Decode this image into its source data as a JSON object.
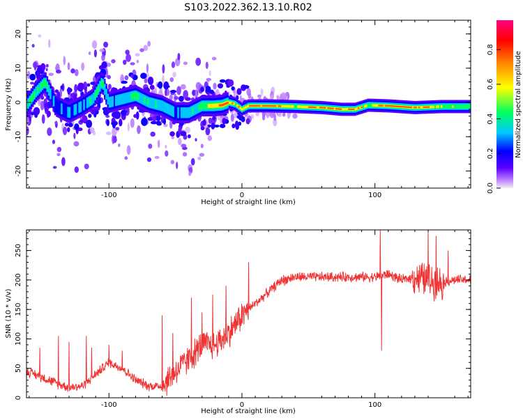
{
  "title": "S103.2022.362.13.10.R02",
  "chart_data": [
    {
      "type": "heatmap",
      "panel": "spectrogram",
      "xlabel": "Height of straight line (km)",
      "ylabel": "Frequency (Hz)",
      "xlim": [
        -162,
        172
      ],
      "ylim": [
        -25,
        24
      ],
      "xticks": [
        -100,
        0,
        100
      ],
      "xtick_labels": [
        "-100",
        "0",
        "100"
      ],
      "yticks": [
        -20,
        -10,
        0,
        10,
        20
      ],
      "ytick_labels": [
        "-20",
        "-10",
        "0",
        "10",
        "20"
      ],
      "colorbar": {
        "label": "Normalized spectral amplitude",
        "range": [
          0.0,
          0.97
        ],
        "ticks": [
          0.0,
          0.2,
          0.4,
          0.6,
          0.8
        ],
        "tick_labels": [
          "0.0",
          "0.2",
          "0.4",
          "0.6",
          "0.8"
        ],
        "colormap": [
          "#f0f0f0",
          "#b060ff",
          "#5a00ff",
          "#0000ff",
          "#00c8ff",
          "#00ff60",
          "#ffff00",
          "#ff8000",
          "#ff0000",
          "#ff0080"
        ]
      },
      "ridge": {
        "x": [
          -162,
          -155,
          -148,
          -140,
          -130,
          -120,
          -112,
          -105,
          -100,
          -90,
          -80,
          -70,
          -60,
          -50,
          -40,
          -30,
          -22,
          -15,
          -10,
          -5,
          0,
          5,
          20,
          40,
          60,
          75,
          85,
          95,
          110,
          130,
          150,
          172
        ],
        "y": [
          -1,
          3,
          6,
          -1,
          -3,
          -1,
          1,
          6,
          0,
          1,
          2,
          0,
          -1,
          -3,
          -3,
          -1,
          -1,
          -0.8,
          0,
          -0.5,
          -2,
          -1,
          -1,
          -1.2,
          -1.5,
          -2,
          -2,
          -0.8,
          -1,
          -1.5,
          -1.2,
          -1.2
        ],
        "amplitude": [
          0.45,
          0.5,
          0.5,
          0.3,
          0.3,
          0.35,
          0.45,
          0.5,
          0.35,
          0.4,
          0.45,
          0.4,
          0.4,
          0.35,
          0.4,
          0.45,
          0.7,
          0.8,
          0.85,
          0.7,
          0.75,
          0.8,
          0.92,
          0.6,
          0.92,
          0.8,
          0.9,
          0.55,
          0.95,
          0.9,
          0.6,
          0.5
        ]
      }
    },
    {
      "type": "line",
      "panel": "snr",
      "xlabel": "Height of straight line (km)",
      "ylabel": "SNR (10 * v/v)",
      "xlim": [
        -162,
        172
      ],
      "ylim": [
        0,
        285
      ],
      "xticks": [
        -100,
        0,
        100
      ],
      "xtick_labels": [
        "-100",
        "0",
        "100"
      ],
      "yticks": [
        0,
        50,
        100,
        150,
        200,
        250
      ],
      "ytick_labels": [
        "0",
        "50",
        "100",
        "150",
        "200",
        "250"
      ],
      "color": "#f03232",
      "series": [
        {
          "name": "SNR",
          "x": [
            -162,
            -150,
            -140,
            -130,
            -120,
            -110,
            -100,
            -90,
            -80,
            -70,
            -60,
            -50,
            -40,
            -30,
            -20,
            -10,
            0,
            10,
            20,
            30,
            40,
            60,
            80,
            100,
            110,
            120,
            130,
            140,
            150,
            160,
            172
          ],
          "y": [
            45,
            35,
            25,
            18,
            20,
            40,
            60,
            50,
            30,
            20,
            20,
            45,
            65,
            90,
            90,
            110,
            140,
            160,
            180,
            200,
            205,
            205,
            205,
            205,
            210,
            200,
            205,
            200,
            195,
            200,
            200
          ],
          "spikes": [
            {
              "x": -152,
              "y": 85
            },
            {
              "x": -138,
              "y": 105
            },
            {
              "x": -130,
              "y": 95
            },
            {
              "x": -117,
              "y": 105
            },
            {
              "x": -113,
              "y": 85
            },
            {
              "x": -100,
              "y": 90
            },
            {
              "x": -90,
              "y": 80
            },
            {
              "x": -60,
              "y": 140
            },
            {
              "x": -52,
              "y": 110
            },
            {
              "x": -38,
              "y": 170
            },
            {
              "x": -30,
              "y": 145
            },
            {
              "x": -22,
              "y": 175
            },
            {
              "x": -12,
              "y": 190
            },
            {
              "x": 5,
              "y": 230
            },
            {
              "x": 32,
              "y": 190
            },
            {
              "x": 104,
              "y": 285
            },
            {
              "x": 105,
              "y": 80
            },
            {
              "x": 140,
              "y": 285
            },
            {
              "x": 146,
              "y": 275
            },
            {
              "x": 155,
              "y": 250
            }
          ],
          "envelope": [
            {
              "x": 130,
              "y": 50
            },
            {
              "x": 140,
              "y": 70
            },
            {
              "x": 150,
              "y": 40
            }
          ]
        }
      ]
    }
  ]
}
